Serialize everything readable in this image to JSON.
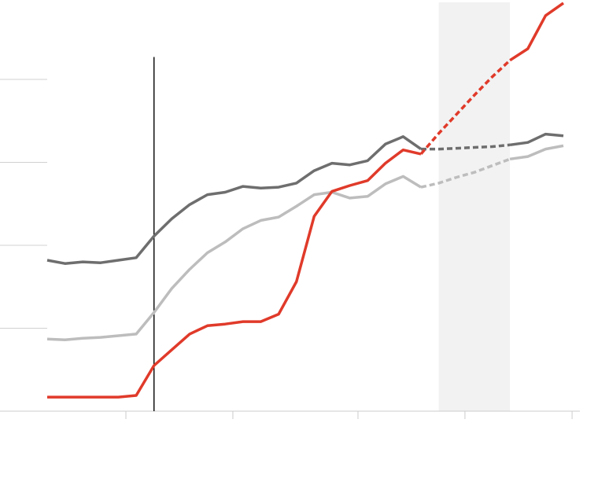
{
  "chart_data": {
    "type": "line",
    "categories": [
      null,
      null,
      null,
      null,
      null,
      null,
      null,
      null,
      null,
      null,
      null,
      null,
      null,
      null,
      null,
      null,
      null,
      null,
      null,
      null,
      null,
      null,
      null,
      null,
      null,
      null,
      null,
      null,
      null,
      null
    ],
    "series": [
      {
        "color": "#6e6e6e",
        "values": [
          1.82,
          1.78,
          1.8,
          1.79,
          1.82,
          1.85,
          2.11,
          2.32,
          2.49,
          2.61,
          2.64,
          2.71,
          2.69,
          2.7,
          2.75,
          2.9,
          2.99,
          2.97,
          3.02,
          3.22,
          3.31,
          3.16,
          3.16,
          3.17,
          3.18,
          3.19,
          3.21,
          3.24,
          3.34,
          3.32
        ]
      },
      {
        "color": "#bdbdbd",
        "values": [
          0.87,
          0.86,
          0.88,
          0.89,
          0.91,
          0.93,
          1.19,
          1.48,
          1.71,
          1.91,
          2.04,
          2.2,
          2.3,
          2.34,
          2.47,
          2.61,
          2.64,
          2.57,
          2.59,
          2.74,
          2.83,
          2.7,
          2.75,
          2.82,
          2.88,
          2.96,
          3.04,
          3.07,
          3.16,
          3.2
        ]
      },
      {
        "color": "#e03a2a",
        "values": [
          0.17,
          0.17,
          0.17,
          0.17,
          0.17,
          0.19,
          0.55,
          0.74,
          0.93,
          1.03,
          1.05,
          1.08,
          1.08,
          1.17,
          1.56,
          2.35,
          2.65,
          2.72,
          2.78,
          2.99,
          3.15,
          3.1,
          3.35,
          3.58,
          3.81,
          4.03,
          4.23,
          4.37,
          4.77,
          4.92
        ]
      }
    ],
    "dashed_range": [
      21,
      26
    ],
    "xlim": [
      0,
      29
    ],
    "xticks": [
      4.42,
      10.43,
      17.46,
      23.47,
      29.49
    ],
    "ylim": [
      0,
      5
    ],
    "yticks": [
      0,
      1,
      2,
      3,
      4
    ],
    "shaded_range": [
      22,
      26
    ],
    "shade_color": "#f2f2f2",
    "marker_line": {
      "x": 6,
      "top": 4.27
    }
  }
}
